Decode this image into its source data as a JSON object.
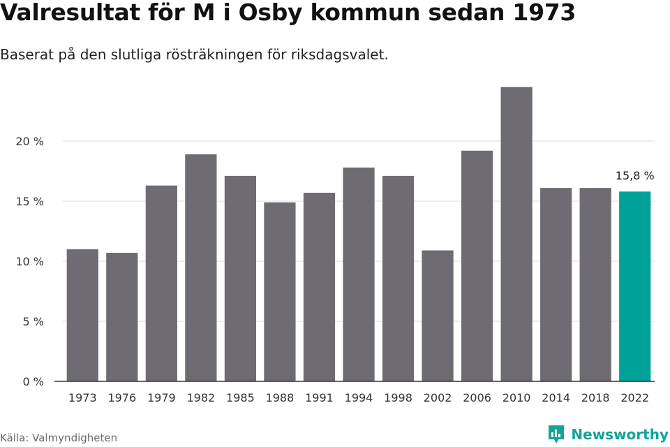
{
  "header": {
    "title": "Valresultat för M i Osby kommun sedan 1973",
    "subtitle": "Baserat på den slutliga rösträkningen för riksdagsvalet."
  },
  "footer": {
    "source": "Källa: Valmyndigheten",
    "brand": "Newsworthy"
  },
  "colors": {
    "bar": "#6e6c72",
    "highlight": "#00a199",
    "brand": "#13a39a",
    "grid": "#dddddd"
  },
  "chart_data": {
    "type": "bar",
    "title": "Valresultat för M i Osby kommun sedan 1973",
    "subtitle": "Baserat på den slutliga rösträkningen för riksdagsvalet.",
    "categories": [
      "1973",
      "1976",
      "1979",
      "1982",
      "1985",
      "1988",
      "1991",
      "1994",
      "1998",
      "2002",
      "2006",
      "2010",
      "2014",
      "2018",
      "2022"
    ],
    "values": [
      11.0,
      10.7,
      16.3,
      18.9,
      17.1,
      14.9,
      15.7,
      17.8,
      17.1,
      10.9,
      19.2,
      24.5,
      16.1,
      16.1,
      15.8
    ],
    "ylim": [
      0,
      25
    ],
    "yticks": [
      0,
      5,
      10,
      15,
      20
    ],
    "ytick_labels": [
      "0 %",
      "5 %",
      "10 %",
      "15 %",
      "20 %"
    ],
    "highlight_index": 14,
    "annotation": "15,8 %",
    "grid": true,
    "xlabel": "",
    "ylabel": ""
  }
}
